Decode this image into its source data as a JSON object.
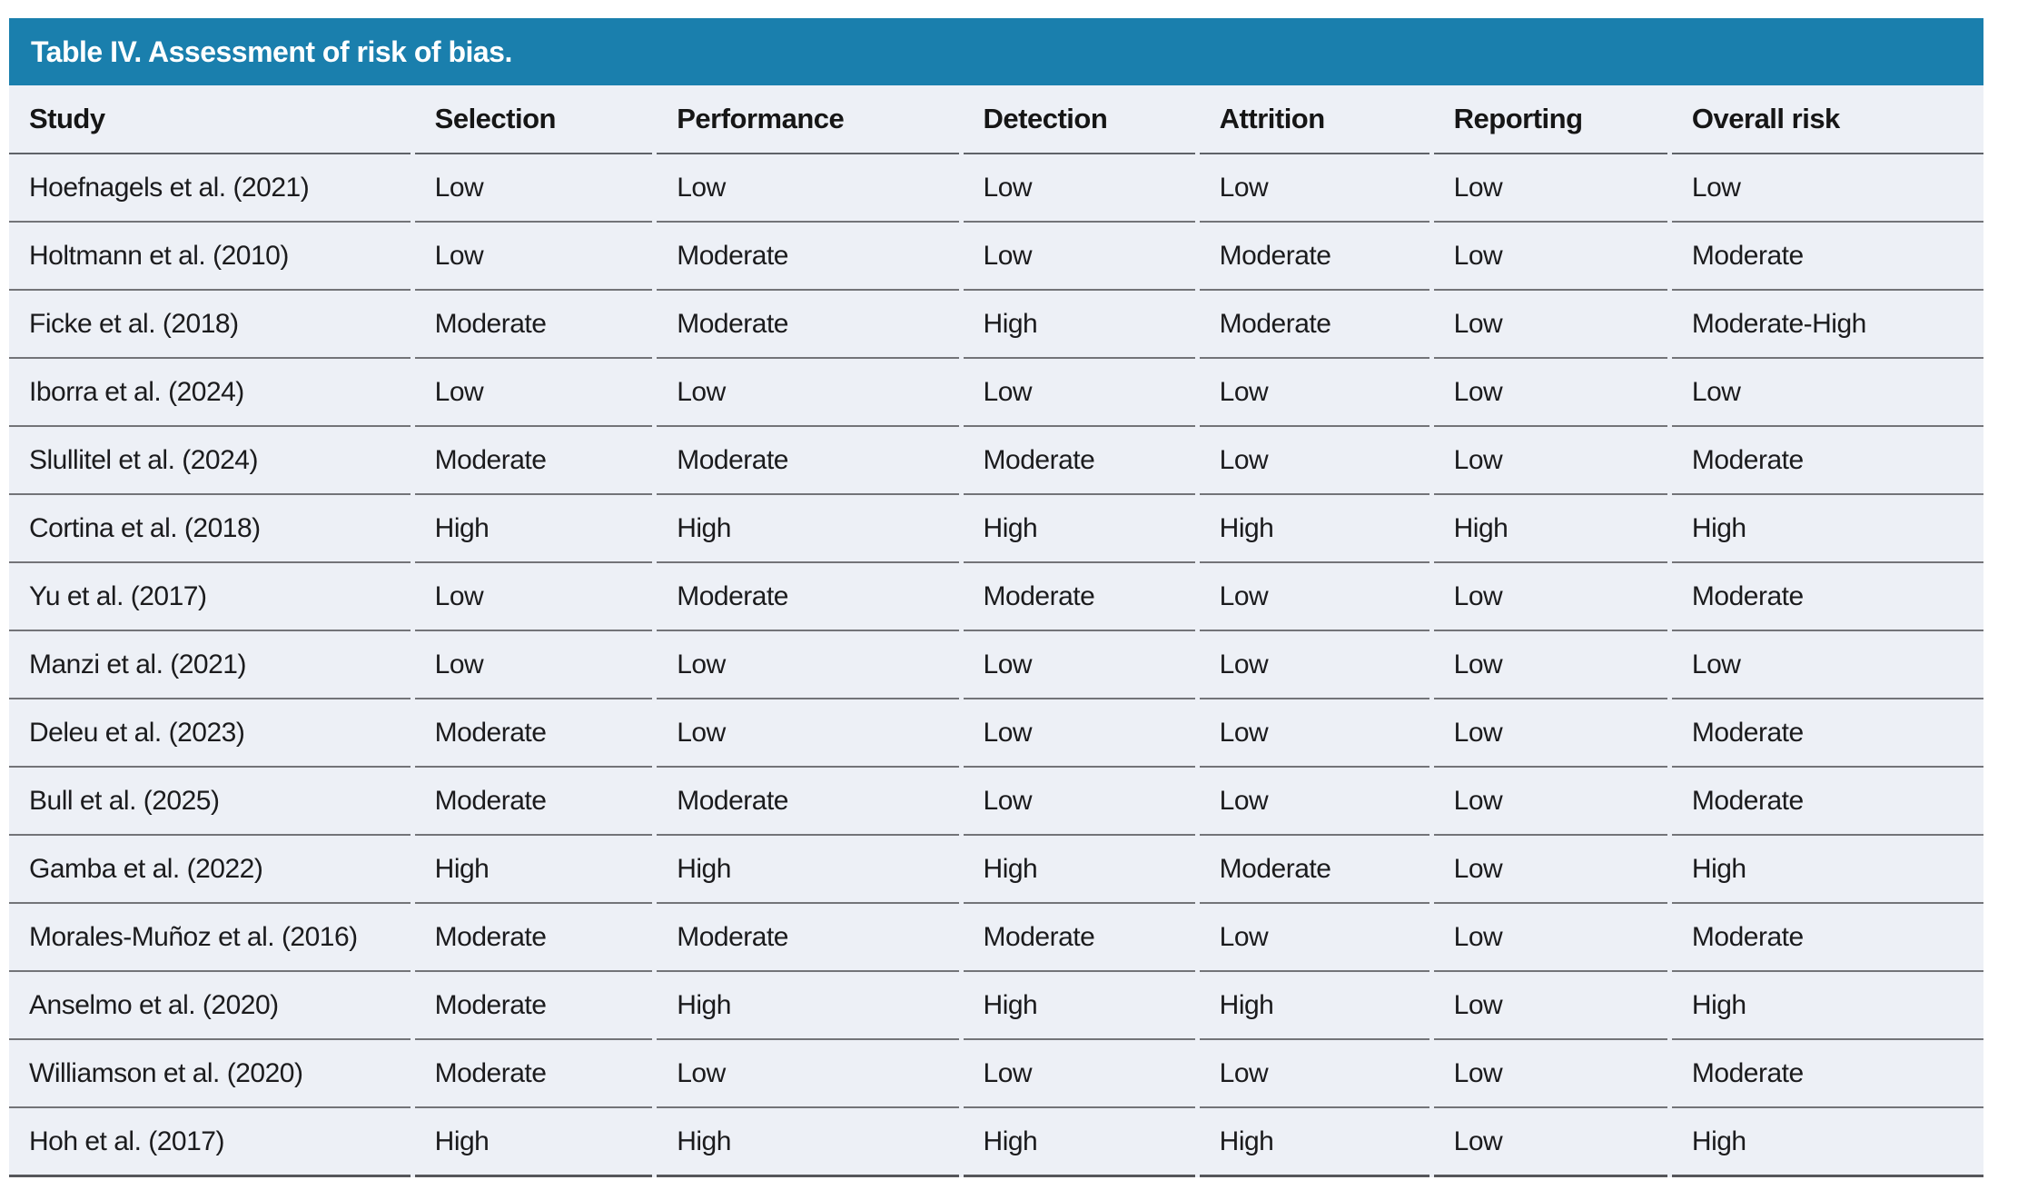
{
  "table": {
    "title": "Table IV. Assessment of risk of bias.",
    "columns": [
      "Study",
      "Selection",
      "Performance",
      "Detection",
      "Attrition",
      "Reporting",
      "Overall risk"
    ],
    "rows": [
      {
        "study": "Hoefnagels et al. (2021)",
        "selection": "Low",
        "performance": "Low",
        "detection": "Low",
        "attrition": "Low",
        "reporting": "Low",
        "overall": "Low"
      },
      {
        "study": "Holtmann et al. (2010)",
        "selection": "Low",
        "performance": "Moderate",
        "detection": "Low",
        "attrition": "Moderate",
        "reporting": "Low",
        "overall": "Moderate"
      },
      {
        "study": "Ficke et al. (2018)",
        "selection": "Moderate",
        "performance": "Moderate",
        "detection": "High",
        "attrition": "Moderate",
        "reporting": "Low",
        "overall": "Moderate-High"
      },
      {
        "study": "Iborra et al. (2024)",
        "selection": "Low",
        "performance": "Low",
        "detection": "Low",
        "attrition": "Low",
        "reporting": "Low",
        "overall": "Low"
      },
      {
        "study": "Slullitel et al. (2024)",
        "selection": "Moderate",
        "performance": "Moderate",
        "detection": "Moderate",
        "attrition": "Low",
        "reporting": "Low",
        "overall": "Moderate"
      },
      {
        "study": "Cortina et al. (2018)",
        "selection": "High",
        "performance": "High",
        "detection": "High",
        "attrition": "High",
        "reporting": "High",
        "overall": "High"
      },
      {
        "study": "Yu et al. (2017)",
        "selection": "Low",
        "performance": "Moderate",
        "detection": "Moderate",
        "attrition": "Low",
        "reporting": "Low",
        "overall": "Moderate"
      },
      {
        "study": "Manzi et al. (2021)",
        "selection": "Low",
        "performance": "Low",
        "detection": "Low",
        "attrition": "Low",
        "reporting": "Low",
        "overall": "Low"
      },
      {
        "study": "Deleu et al. (2023)",
        "selection": "Moderate",
        "performance": "Low",
        "detection": "Low",
        "attrition": "Low",
        "reporting": "Low",
        "overall": "Moderate"
      },
      {
        "study": "Bull et al. (2025)",
        "selection": "Moderate",
        "performance": "Moderate",
        "detection": "Low",
        "attrition": "Low",
        "reporting": "Low",
        "overall": "Moderate"
      },
      {
        "study": "Gamba et al. (2022)",
        "selection": "High",
        "performance": "High",
        "detection": "High",
        "attrition": "Moderate",
        "reporting": "Low",
        "overall": "High"
      },
      {
        "study": "Morales-Muñoz et al. (2016)",
        "selection": "Moderate",
        "performance": "Moderate",
        "detection": "Moderate",
        "attrition": "Low",
        "reporting": "Low",
        "overall": "Moderate"
      },
      {
        "study": "Anselmo et al. (2020)",
        "selection": "Moderate",
        "performance": "High",
        "detection": "High",
        "attrition": "High",
        "reporting": "Low",
        "overall": "High"
      },
      {
        "study": "Williamson et al. (2020)",
        "selection": "Moderate",
        "performance": "Low",
        "detection": "Low",
        "attrition": "Low",
        "reporting": "Low",
        "overall": "Moderate"
      },
      {
        "study": "Hoh et al. (2017)",
        "selection": "High",
        "performance": "High",
        "detection": "High",
        "attrition": "High",
        "reporting": "Low",
        "overall": "High"
      }
    ]
  },
  "colors": {
    "title_bar_bg": "#1a7fad",
    "title_text": "#ffffff",
    "body_bg": "#edf0f6",
    "row_divider": "#737478",
    "header_divider": "#5f6368",
    "bottom_border": "#55565a",
    "cell_text": "#1b1b1d"
  }
}
